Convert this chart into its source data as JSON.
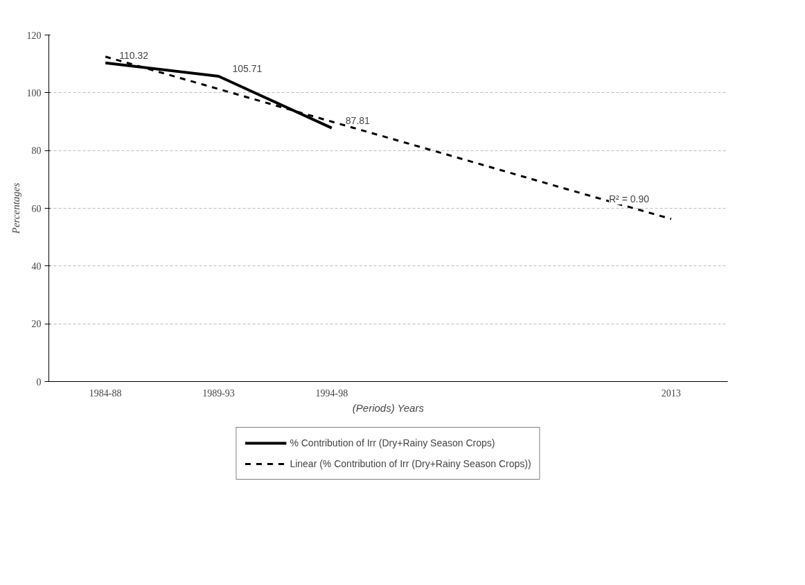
{
  "chart_data": {
    "type": "line",
    "xlabel": "(Periods) Years",
    "ylabel": "Percentages",
    "categories": [
      "1984-88",
      "1989-93",
      "1994-98",
      null,
      null,
      "2013"
    ],
    "series": [
      {
        "name": "% Contribution of Irr (Dry+Rainy Season Crops)",
        "color": "#000000",
        "line_style": "solid",
        "values": [
          110.32,
          105.71,
          87.81,
          null,
          null,
          null
        ],
        "value_labels": [
          "110.32",
          "105.71",
          "87.81",
          null,
          null,
          null
        ]
      },
      {
        "name": "Linear (% Contribution of Irr (Dry+Rainy Season Crops))",
        "color": "#000000",
        "line_style": "dashed",
        "values": [
          112.5,
          101.3,
          90.0,
          78.8,
          67.5,
          56.3
        ]
      }
    ],
    "annotations": [
      "R² = 0.90"
    ],
    "ylim": [
      0,
      120
    ],
    "yticks": [
      0,
      20,
      40,
      60,
      80,
      100,
      120
    ],
    "grid": "y",
    "legend": "bottom"
  }
}
